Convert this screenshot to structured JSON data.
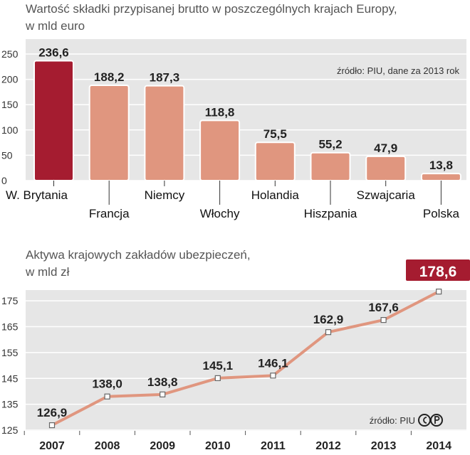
{
  "chart_data": [
    {
      "type": "bar",
      "title_line1": "Wartość składki przypisanej brutto w poszczególnych krajach Europy,",
      "title_line2": "w mld euro",
      "source": "źródło: PIU, dane za 2013 rok",
      "categories": [
        "W. Brytania",
        "Francja",
        "Niemcy",
        "Włochy",
        "Holandia",
        "Hiszpania",
        "Szwajcaria",
        "Polska"
      ],
      "values": [
        236.6,
        188.2,
        187.3,
        118.8,
        75.5,
        55.2,
        47.9,
        13.8
      ],
      "value_labels": [
        "236,6",
        "188,2",
        "187,3",
        "118,8",
        "75,5",
        "55,2",
        "47,9",
        "13,8"
      ],
      "ylim": [
        0,
        250
      ],
      "yticks": [
        0,
        50,
        100,
        150,
        200,
        250
      ],
      "colors": {
        "highlight": "#a51c30",
        "bar": "#e0967f",
        "polska_label": "#a51c30",
        "panel": "#e6e6e6"
      }
    },
    {
      "type": "line",
      "title_line1": "Aktywa krajowych zakładów ubezpieczeń,",
      "title_line2": "w mld zł",
      "source": "źródło: PIU",
      "x": [
        "2007",
        "2008",
        "2009",
        "2010",
        "2011",
        "2012",
        "2013",
        "2014"
      ],
      "values": [
        126.9,
        138.0,
        138.8,
        145.1,
        146.1,
        162.9,
        167.6,
        178.6
      ],
      "value_labels": [
        "126,9",
        "138,0",
        "138,8",
        "145,1",
        "146,1",
        "162,9",
        "167,6",
        "178,6"
      ],
      "ylim": [
        125,
        180
      ],
      "yticks": [
        125,
        135,
        145,
        155,
        165,
        175
      ],
      "colors": {
        "line": "#e0967f",
        "highlight": "#a51c30",
        "panel": "#e6e6e6"
      }
    }
  ]
}
